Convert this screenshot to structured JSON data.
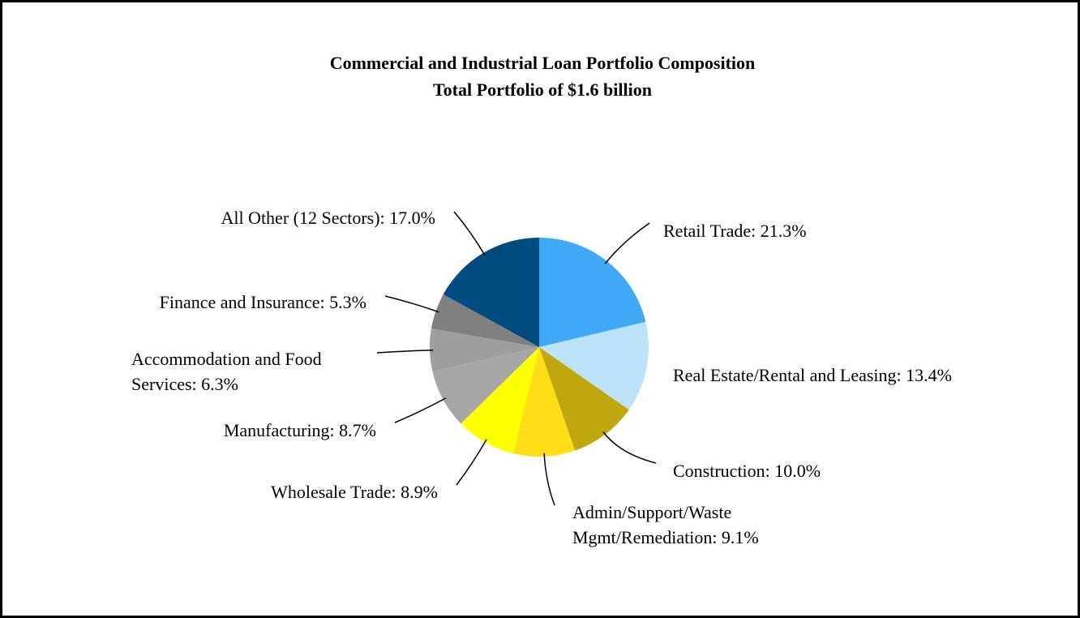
{
  "chart_data": {
    "type": "pie",
    "title": "Commercial and Industrial Loan Portfolio Composition",
    "subtitle": "Total Portfolio of $1.6 billion",
    "values": [
      21.3,
      13.4,
      10.0,
      9.1,
      8.9,
      8.7,
      6.3,
      5.3,
      17.0
    ],
    "value_labels": [
      "Retail Trade: 21.3%",
      "Real Estate/Rental and Leasing: 13.4%",
      "Construction: 10.0%",
      "Admin/Support/Waste\nMgmt/Remediation: 9.1%",
      "Wholesale Trade: 8.9%",
      "Manufacturing: 8.7%",
      "Accommodation and Food\nServices: 6.3%",
      "Finance and Insurance: 5.3%",
      "All Other (12 Sectors): 17.0%"
    ],
    "colors": [
      "#3fa9f5",
      "#bde3fb",
      "#c1a70f",
      "#ffdd17",
      "#ffff00",
      "#a6a6a6",
      "#9e9e9e",
      "#808080",
      "#004c80"
    ]
  }
}
